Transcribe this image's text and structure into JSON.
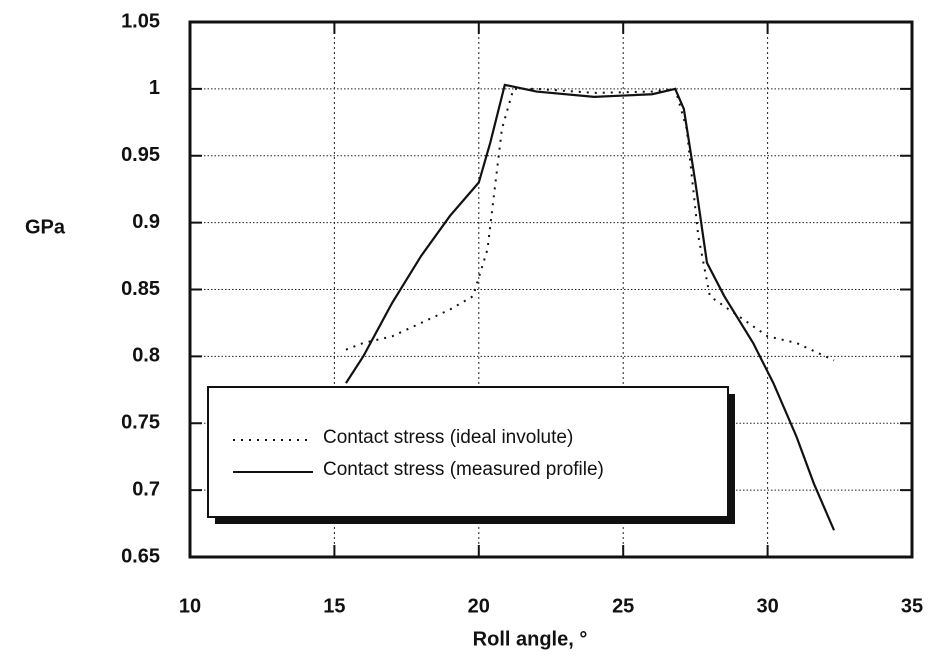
{
  "chart_data": {
    "type": "line",
    "xlabel": "Roll angle, °",
    "ylabel": "GPa",
    "xlim": [
      10,
      35
    ],
    "xticks": [
      10,
      15,
      20,
      25,
      30,
      35
    ],
    "ylim": [
      0.65,
      1.05
    ],
    "yticks": [
      0.65,
      0.7,
      0.75,
      0.8,
      0.85,
      0.9,
      0.95,
      1,
      1.05
    ],
    "grid": true,
    "legend": "lower center",
    "series": [
      {
        "name": "Contact stress (ideal involute)",
        "style": "dotted",
        "color": "#111111",
        "x": [
          15.4,
          16,
          17,
          18,
          19,
          19.8,
          20.3,
          20.8,
          21.2,
          22,
          24,
          26,
          26.8,
          27.2,
          27.6,
          28,
          29,
          30,
          31,
          32.3
        ],
        "values": [
          0.805,
          0.81,
          0.815,
          0.825,
          0.835,
          0.845,
          0.88,
          0.97,
          1.0,
          1.0,
          0.997,
          0.998,
          1.0,
          0.97,
          0.89,
          0.845,
          0.83,
          0.815,
          0.81,
          0.797
        ]
      },
      {
        "name": "Contact stress (measured profile)",
        "style": "solid",
        "color": "#111111",
        "x": [
          15.4,
          16,
          17,
          18,
          19,
          19.6,
          20,
          20.4,
          20.9,
          22,
          24,
          25,
          26,
          26.8,
          27.1,
          27.5,
          27.9,
          28.5,
          29.5,
          30.2,
          31,
          31.6,
          32.3
        ],
        "values": [
          0.78,
          0.8,
          0.84,
          0.875,
          0.905,
          0.92,
          0.93,
          0.96,
          1.003,
          0.998,
          0.994,
          0.995,
          0.996,
          1.0,
          0.985,
          0.93,
          0.87,
          0.845,
          0.81,
          0.78,
          0.74,
          0.705,
          0.67
        ]
      }
    ]
  }
}
